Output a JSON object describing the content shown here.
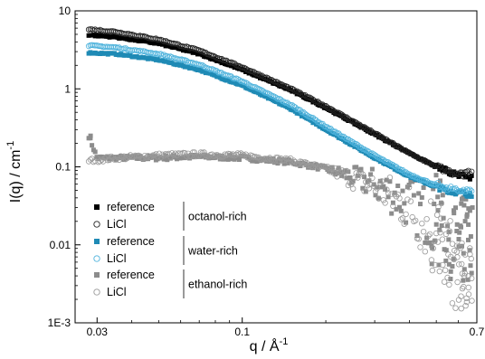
{
  "chart_data": {
    "type": "scatter",
    "xlabel": "q / Å",
    "xlabel_sup": "-1",
    "ylabel": "I(q) / cm",
    "ylabel_sup": "-1",
    "x_scale": "log",
    "y_scale": "log",
    "xlim": [
      0.025,
      0.7
    ],
    "ylim": [
      0.001,
      10
    ],
    "x_ticks": [
      {
        "value": 0.03,
        "label": "0.03"
      },
      {
        "value": 0.1,
        "label": "0.1"
      },
      {
        "value": 0.7,
        "label": "0.7"
      }
    ],
    "y_ticks": [
      {
        "value": 10,
        "label": "10"
      },
      {
        "value": 1,
        "label": "1"
      },
      {
        "value": 0.1,
        "label": "0.1"
      },
      {
        "value": 0.01,
        "label": "0.01"
      },
      {
        "value": 0.001,
        "label": "1E-3"
      }
    ],
    "grid": false,
    "legend_position": "bottom-left",
    "legend_groups": [
      {
        "label": "octanol-rich",
        "entries": [
          {
            "label": "reference",
            "series_index": 0
          },
          {
            "label": "LiCl",
            "series_index": 1
          }
        ]
      },
      {
        "label": "water-rich",
        "entries": [
          {
            "label": "reference",
            "series_index": 2
          },
          {
            "label": "LiCl",
            "series_index": 3
          }
        ]
      },
      {
        "label": "ethanol-rich",
        "entries": [
          {
            "label": "reference",
            "series_index": 4
          },
          {
            "label": "LiCl",
            "series_index": 5
          }
        ]
      }
    ],
    "series": [
      {
        "name": "reference",
        "group": "octanol-rich",
        "marker": "square",
        "filled": true,
        "color": "#000000",
        "x": [
          0.028,
          0.035,
          0.05,
          0.07,
          0.1,
          0.15,
          0.2,
          0.3,
          0.4,
          0.5,
          0.6,
          0.67
        ],
        "y": [
          4.9,
          4.6,
          3.8,
          2.8,
          1.75,
          0.95,
          0.57,
          0.26,
          0.15,
          0.1,
          0.077,
          0.075
        ]
      },
      {
        "name": "LiCl",
        "group": "octanol-rich",
        "marker": "circle",
        "filled": false,
        "color": "#222222",
        "x": [
          0.028,
          0.035,
          0.05,
          0.07,
          0.1,
          0.15,
          0.2,
          0.3,
          0.4,
          0.5,
          0.6,
          0.67
        ],
        "y": [
          5.8,
          5.4,
          4.3,
          3.1,
          1.9,
          1.0,
          0.6,
          0.27,
          0.15,
          0.1,
          0.078,
          0.085
        ]
      },
      {
        "name": "reference",
        "group": "water-rich",
        "marker": "square",
        "filled": true,
        "color": "#1f8ab5",
        "x": [
          0.028,
          0.035,
          0.05,
          0.07,
          0.1,
          0.15,
          0.2,
          0.3,
          0.4,
          0.5,
          0.6,
          0.67
        ],
        "y": [
          2.9,
          2.8,
          2.35,
          1.75,
          1.1,
          0.55,
          0.3,
          0.13,
          0.075,
          0.055,
          0.046,
          0.045
        ]
      },
      {
        "name": "LiCl",
        "group": "water-rich",
        "marker": "circle",
        "filled": false,
        "color": "#4fb3dc",
        "x": [
          0.028,
          0.035,
          0.05,
          0.07,
          0.1,
          0.15,
          0.2,
          0.3,
          0.4,
          0.5,
          0.6,
          0.67
        ],
        "y": [
          3.6,
          3.4,
          2.8,
          2.05,
          1.25,
          0.62,
          0.33,
          0.14,
          0.08,
          0.058,
          0.05,
          0.05
        ]
      },
      {
        "name": "reference",
        "group": "ethanol-rich",
        "marker": "square",
        "filled": true,
        "color": "#8c8c8c",
        "x": [
          0.028,
          0.03,
          0.035,
          0.05,
          0.07,
          0.1,
          0.15,
          0.2,
          0.3,
          0.4,
          0.5,
          0.6,
          0.67
        ],
        "y": [
          0.25,
          0.13,
          0.13,
          0.13,
          0.135,
          0.13,
          0.115,
          0.095,
          0.06,
          0.035,
          0.02,
          0.012,
          0.01
        ]
      },
      {
        "name": "LiCl",
        "group": "ethanol-rich",
        "marker": "circle",
        "filled": false,
        "color": "#9a9a9a",
        "x": [
          0.028,
          0.035,
          0.05,
          0.07,
          0.1,
          0.15,
          0.2,
          0.3,
          0.4,
          0.5,
          0.6,
          0.67
        ],
        "y": [
          0.12,
          0.13,
          0.14,
          0.145,
          0.14,
          0.12,
          0.095,
          0.055,
          0.03,
          0.012,
          0.004,
          0.0025
        ]
      }
    ]
  }
}
